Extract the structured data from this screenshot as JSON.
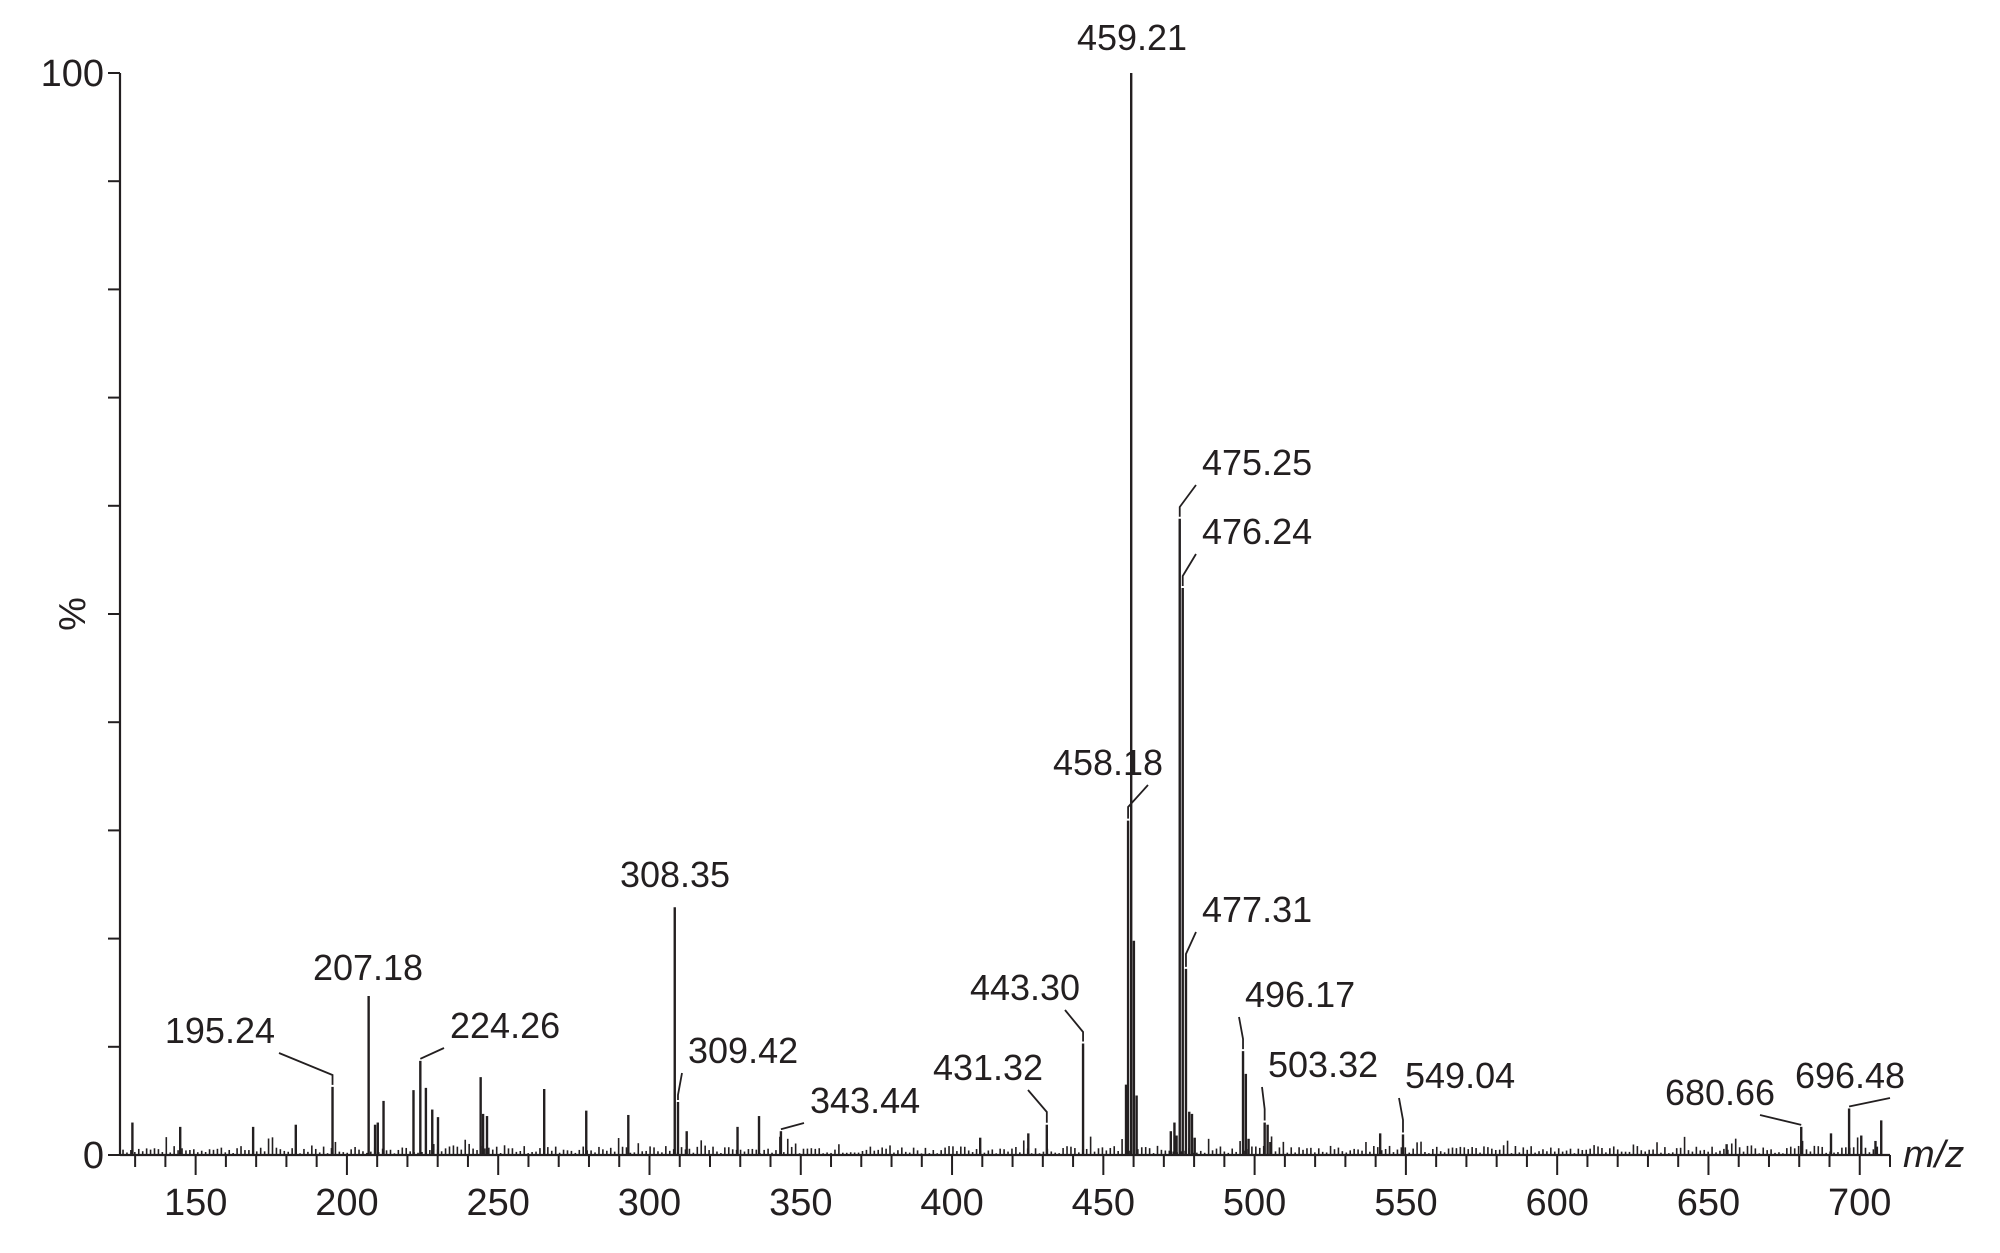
{
  "chart_data": {
    "type": "bar",
    "subtype": "mass-spectrum-stick",
    "xlabel": "m/z",
    "ylabel": "%",
    "xlim": [
      125,
      710
    ],
    "ylim": [
      0,
      100
    ],
    "x_ticks": [
      150,
      200,
      250,
      300,
      350,
      400,
      450,
      500,
      550,
      600,
      650,
      700
    ],
    "x_tick_labels": [
      "150",
      "200",
      "250",
      "300",
      "350",
      "400",
      "450",
      "500",
      "550",
      "600",
      "650",
      "700"
    ],
    "y_tick_labels": [
      "0",
      "100"
    ],
    "grid": false,
    "labeled_peaks": [
      {
        "x": 195.24,
        "y": 6.3,
        "label": "195.24"
      },
      {
        "x": 207.18,
        "y": 14.7,
        "label": "207.18"
      },
      {
        "x": 224.26,
        "y": 8.7,
        "label": "224.26"
      },
      {
        "x": 308.35,
        "y": 22.9,
        "label": "308.35"
      },
      {
        "x": 309.42,
        "y": 4.9,
        "label": "309.42"
      },
      {
        "x": 343.44,
        "y": 2.2,
        "label": "343.44"
      },
      {
        "x": 431.32,
        "y": 2.8,
        "label": "431.32"
      },
      {
        "x": 443.3,
        "y": 10.3,
        "label": "443.30"
      },
      {
        "x": 458.18,
        "y": 30.9,
        "label": "458.18"
      },
      {
        "x": 459.21,
        "y": 100,
        "label": "459.21"
      },
      {
        "x": 475.25,
        "y": 58.8,
        "label": "475.25"
      },
      {
        "x": 476.24,
        "y": 52.4,
        "label": "476.24"
      },
      {
        "x": 477.31,
        "y": 17.2,
        "label": "477.31"
      },
      {
        "x": 496.17,
        "y": 9.6,
        "label": "496.17"
      },
      {
        "x": 503.32,
        "y": 3.0,
        "label": "503.32"
      },
      {
        "x": 549.04,
        "y": 1.9,
        "label": "549.04"
      },
      {
        "x": 680.66,
        "y": 2.6,
        "label": "680.66"
      },
      {
        "x": 696.48,
        "y": 4.3,
        "label": "696.48"
      }
    ],
    "unlabeled_peaks": [
      {
        "x": 460.1,
        "y": 19.8
      },
      {
        "x": 461.0,
        "y": 5.5
      },
      {
        "x": 457.5,
        "y": 6.5
      },
      {
        "x": 472.3,
        "y": 2.2
      },
      {
        "x": 473.5,
        "y": 3.0
      },
      {
        "x": 474.2,
        "y": 1.8
      },
      {
        "x": 478.4,
        "y": 4.0
      },
      {
        "x": 479.3,
        "y": 3.8
      },
      {
        "x": 480.2,
        "y": 1.6
      },
      {
        "x": 497.1,
        "y": 7.5
      },
      {
        "x": 498.0,
        "y": 1.5
      },
      {
        "x": 504.3,
        "y": 2.8
      },
      {
        "x": 505.2,
        "y": 1.2
      },
      {
        "x": 541.5,
        "y": 2.0
      },
      {
        "x": 226.1,
        "y": 6.2
      },
      {
        "x": 222.0,
        "y": 6.0
      },
      {
        "x": 228.2,
        "y": 4.2
      },
      {
        "x": 230.1,
        "y": 3.5
      },
      {
        "x": 244.2,
        "y": 7.2
      },
      {
        "x": 245.0,
        "y": 3.8
      },
      {
        "x": 246.3,
        "y": 3.6
      },
      {
        "x": 265.2,
        "y": 6.1
      },
      {
        "x": 279.1,
        "y": 4.1
      },
      {
        "x": 293.0,
        "y": 3.7
      },
      {
        "x": 212.1,
        "y": 5.0
      },
      {
        "x": 209.3,
        "y": 2.8
      },
      {
        "x": 210.2,
        "y": 3.0
      },
      {
        "x": 169.0,
        "y": 2.6
      },
      {
        "x": 183.1,
        "y": 2.8
      },
      {
        "x": 129.1,
        "y": 3.0
      },
      {
        "x": 144.9,
        "y": 2.6
      },
      {
        "x": 336.2,
        "y": 3.6
      },
      {
        "x": 329.1,
        "y": 2.6
      },
      {
        "x": 312.3,
        "y": 2.2
      },
      {
        "x": 409.3,
        "y": 1.6
      },
      {
        "x": 425.2,
        "y": 2.0
      },
      {
        "x": 656.0,
        "y": 1.0
      },
      {
        "x": 690.5,
        "y": 2.0
      },
      {
        "x": 700.5,
        "y": 1.8
      },
      {
        "x": 705.2,
        "y": 1.3
      },
      {
        "x": 707.1,
        "y": 3.2
      }
    ]
  }
}
